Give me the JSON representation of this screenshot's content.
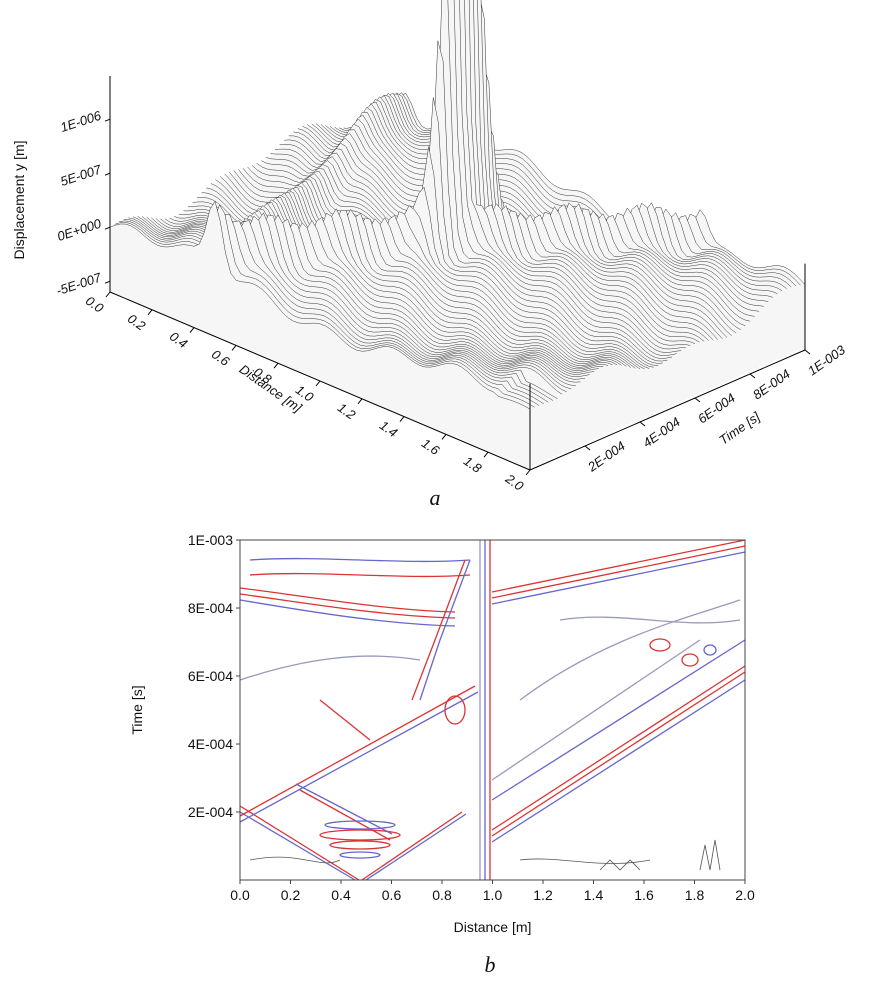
{
  "chart_data": [
    {
      "type": "surface",
      "caption": "a",
      "zlabel": "Displacement y [m]",
      "xlabel": "Distance [m]",
      "ylabel": "Time [s]",
      "xlim": [
        0,
        2
      ],
      "xticks": [
        {
          "value": 0,
          "label": "0.0"
        },
        {
          "value": 0.2,
          "label": "0.2"
        },
        {
          "value": 0.4,
          "label": "0.4"
        },
        {
          "value": 0.6,
          "label": "0.6"
        },
        {
          "value": 0.8,
          "label": "0.8"
        },
        {
          "value": 1,
          "label": "1.0"
        },
        {
          "value": 1.2,
          "label": "1.2"
        },
        {
          "value": 1.4,
          "label": "1.4"
        },
        {
          "value": 1.6,
          "label": "1.6"
        },
        {
          "value": 1.8,
          "label": "1.8"
        },
        {
          "value": 2,
          "label": "2.0"
        }
      ],
      "ylim": [
        0,
        0.001
      ],
      "yticks": [
        {
          "value": 0.0002,
          "label": "2E-004"
        },
        {
          "value": 0.0004,
          "label": "4E-004"
        },
        {
          "value": 0.0006,
          "label": "6E-004"
        },
        {
          "value": 0.0008,
          "label": "8E-004"
        },
        {
          "value": 0.001,
          "label": "1E-003"
        }
      ],
      "zlim": [
        -6e-07,
        1.4e-06
      ],
      "zticks": [
        {
          "value": -5e-07,
          "label": "-5E-007"
        },
        {
          "value": 0,
          "label": "0E+000"
        },
        {
          "value": 5e-07,
          "label": "5E-007"
        },
        {
          "value": 1e-06,
          "label": "1E-006"
        }
      ]
    },
    {
      "type": "contour",
      "caption": "b",
      "xlabel": "Distance [m]",
      "ylabel": "Time [s]",
      "xlim": [
        0,
        2
      ],
      "xticks": [
        {
          "value": 0,
          "label": "0.0"
        },
        {
          "value": 0.2,
          "label": "0.2"
        },
        {
          "value": 0.4,
          "label": "0.4"
        },
        {
          "value": 0.6,
          "label": "0.6"
        },
        {
          "value": 0.8,
          "label": "0.8"
        },
        {
          "value": 1,
          "label": "1.0"
        },
        {
          "value": 1.2,
          "label": "1.2"
        },
        {
          "value": 1.4,
          "label": "1.4"
        },
        {
          "value": 1.6,
          "label": "1.6"
        },
        {
          "value": 1.8,
          "label": "1.8"
        },
        {
          "value": 2,
          "label": "2.0"
        }
      ],
      "ylim": [
        0,
        0.001
      ],
      "yticks": [
        {
          "value": 0.0002,
          "label": "2E-004"
        },
        {
          "value": 0.0004,
          "label": "4E-004"
        },
        {
          "value": 0.0006,
          "label": "6E-004"
        },
        {
          "value": 0.0008,
          "label": "8E-004"
        },
        {
          "value": 0.001,
          "label": "1E-003"
        }
      ]
    }
  ]
}
